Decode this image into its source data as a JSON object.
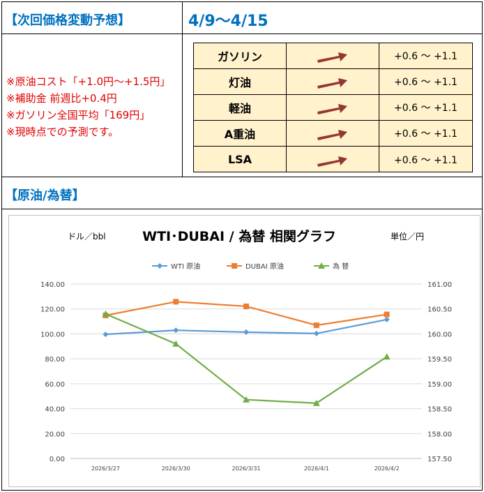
{
  "header": {
    "forecast_title": "【次回価格変動予想】",
    "period": "4/9～4/15",
    "section2_title": "【原油/為替】"
  },
  "notes": [
    "※原油コスト「+1.0円～+1.5円」",
    "※補助金 前週比+0.4円",
    "※ガソリン全国平均「169円」",
    "※現時点での予測です。"
  ],
  "forecast_rows": [
    {
      "name": "ガソリン",
      "range": "+0.6 ～ +1.1",
      "trend": "up"
    },
    {
      "name": "灯油",
      "range": "+0.6 ～ +1.1",
      "trend": "up"
    },
    {
      "name": "軽油",
      "range": "+0.6 ～ +1.1",
      "trend": "up"
    },
    {
      "name": "A重油",
      "range": "+0.6 ～ +1.1",
      "trend": "up"
    },
    {
      "name": "LSA",
      "range": "+0.6 ～ +1.1",
      "trend": "up"
    }
  ],
  "colors": {
    "header_blue": "#0070c0",
    "notes_red": "#e00000",
    "table_bg": "#fff2cc",
    "arrow": "#943634",
    "wti": "#5b9bd5",
    "dubai": "#ed7d31",
    "fx": "#70ad47"
  },
  "chart_data": {
    "type": "line",
    "title": "WTI･DUBAI  /  為替   相関グラフ",
    "left_unit": "ドル／bbl",
    "right_unit": "単位／円",
    "categories": [
      "2026/3/27",
      "2026/3/30",
      "2026/3/31",
      "2026/4/1",
      "2026/4/2"
    ],
    "series": [
      {
        "name": "WTI 原油",
        "axis": "left",
        "color": "#5b9bd5",
        "marker": "diamond",
        "values": [
          99.6,
          102.9,
          101.4,
          100.3,
          111.5
        ]
      },
      {
        "name": "DUBAI 原油",
        "axis": "left",
        "color": "#ed7d31",
        "marker": "square",
        "values": [
          114.8,
          125.8,
          122.1,
          106.9,
          115.6
        ]
      },
      {
        "name": "為 替",
        "axis": "right",
        "color": "#70ad47",
        "marker": "triangle",
        "values": [
          160.4,
          159.8,
          158.68,
          158.61,
          159.54
        ]
      }
    ],
    "left_ylim": [
      0,
      140
    ],
    "left_ticks": [
      "0.00",
      "20.00",
      "40.00",
      "60.00",
      "80.00",
      "100.00",
      "120.00",
      "140.00"
    ],
    "right_ylim": [
      157.5,
      161
    ],
    "right_ticks": [
      "157.50",
      "158.00",
      "158.50",
      "159.00",
      "159.50",
      "160.00",
      "160.50",
      "161.00"
    ],
    "grid": true,
    "legend_position": "top"
  }
}
